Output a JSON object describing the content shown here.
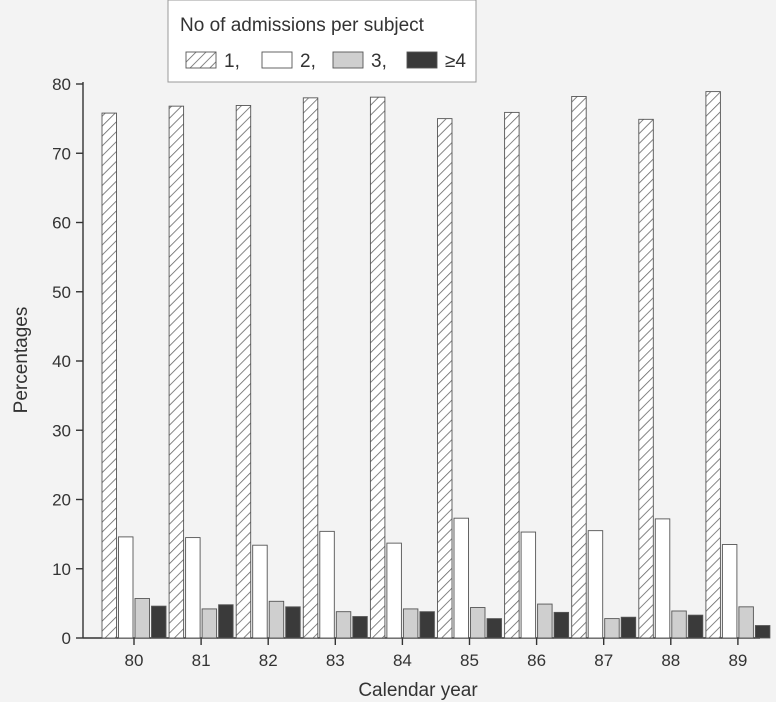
{
  "chart_data": {
    "type": "bar",
    "xlabel": "Calendar year",
    "ylabel": "Percentages",
    "ylim": [
      0,
      80
    ],
    "yticks": [
      0,
      10,
      20,
      30,
      40,
      50,
      60,
      70,
      80
    ],
    "grid": false,
    "legend": {
      "title": "No of admissions per subject",
      "placement": "top-left",
      "entries": [
        "1,",
        "2,",
        "3,",
        "≥4"
      ]
    },
    "categories": [
      "80",
      "81",
      "82",
      "83",
      "84",
      "85",
      "86",
      "87",
      "88",
      "89"
    ],
    "series": [
      {
        "name": "1",
        "legend_label": "1,",
        "pattern": "hatched",
        "values": [
          75.8,
          76.8,
          76.9,
          78.0,
          78.1,
          75.0,
          75.9,
          78.2,
          74.9,
          78.9
        ]
      },
      {
        "name": "2",
        "legend_label": "2,",
        "pattern": "white",
        "values": [
          14.6,
          14.5,
          13.4,
          15.4,
          13.7,
          17.3,
          15.3,
          15.5,
          17.2,
          13.5
        ]
      },
      {
        "name": "3",
        "legend_label": "3,",
        "pattern": "light-grey",
        "values": [
          5.7,
          4.2,
          5.3,
          3.8,
          4.2,
          4.4,
          4.9,
          2.8,
          3.9,
          4.5
        ]
      },
      {
        "name": "≥4",
        "legend_label": "≥4",
        "pattern": "dark",
        "values": [
          4.6,
          4.8,
          4.5,
          3.1,
          3.8,
          2.8,
          3.7,
          3.0,
          3.3,
          1.8
        ]
      }
    ],
    "colors": {
      "background": "#f3f3f3",
      "hatch_stroke": "#666666",
      "bar_outline": "#555555",
      "light_grey": "#cfcfcf",
      "dark": "#3a3a3a",
      "white": "#ffffff"
    }
  }
}
